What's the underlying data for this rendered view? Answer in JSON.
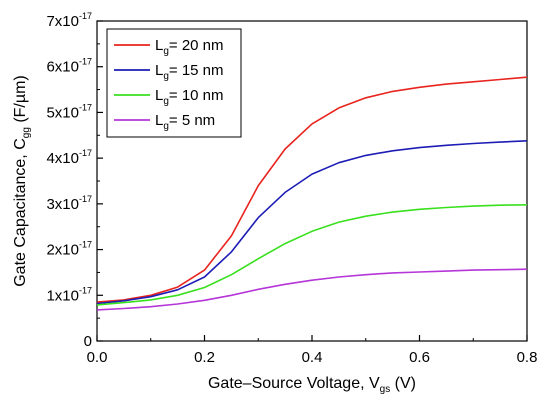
{
  "chart_data": {
    "type": "line",
    "xlabel": {
      "main": "Gate–Source Voltage, V",
      "sub": "gs",
      "unit": " (V)"
    },
    "ylabel": {
      "main": "Gate Capacitance, C",
      "sub": "gg",
      "unit": "  (F/µm)"
    },
    "xlim": [
      0,
      0.8
    ],
    "ylim": [
      0,
      7e-17
    ],
    "x_ticks": [
      {
        "value": 0.0,
        "label": "0.0"
      },
      {
        "value": 0.2,
        "label": "0.2"
      },
      {
        "value": 0.4,
        "label": "0.4"
      },
      {
        "value": 0.6,
        "label": "0.6"
      },
      {
        "value": 0.8,
        "label": "0.8"
      }
    ],
    "y_ticks": [
      {
        "value": 0,
        "mant": "0",
        "exp": ""
      },
      {
        "value": 1e-17,
        "mant": "1x10",
        "exp": "-17"
      },
      {
        "value": 2e-17,
        "mant": "2x10",
        "exp": "-17"
      },
      {
        "value": 3e-17,
        "mant": "3x10",
        "exp": "-17"
      },
      {
        "value": 4e-17,
        "mant": "4x10",
        "exp": "-17"
      },
      {
        "value": 5e-17,
        "mant": "5x10",
        "exp": "-17"
      },
      {
        "value": 6e-17,
        "mant": "6x10",
        "exp": "-17"
      },
      {
        "value": 7e-17,
        "mant": "7x10",
        "exp": "-17"
      }
    ],
    "grid": false,
    "legend_position": "top-left",
    "x": [
      0.0,
      0.05,
      0.1,
      0.15,
      0.2,
      0.25,
      0.3,
      0.35,
      0.4,
      0.45,
      0.5,
      0.55,
      0.6,
      0.65,
      0.7,
      0.75,
      0.8
    ],
    "series": [
      {
        "label_main": "L",
        "label_sub": "g",
        "label_rest": "= 20 nm",
        "color": "#e8241e",
        "values": [
          8.5e-18,
          9e-18,
          1e-17,
          1.18e-17,
          1.55e-17,
          2.3e-17,
          3.4e-17,
          4.2e-17,
          4.75e-17,
          5.1e-17,
          5.32e-17,
          5.46e-17,
          5.55e-17,
          5.62e-17,
          5.67e-17,
          5.72e-17,
          5.77e-17
        ]
      },
      {
        "label_main": "L",
        "label_sub": "g",
        "label_rest": "= 15 nm",
        "color": "#1d1db5",
        "values": [
          8.2e-18,
          8.8e-18,
          9.7e-18,
          1.12e-17,
          1.4e-17,
          1.95e-17,
          2.7e-17,
          3.25e-17,
          3.65e-17,
          3.9e-17,
          4.06e-17,
          4.16e-17,
          4.23e-17,
          4.28e-17,
          4.32e-17,
          4.35e-17,
          4.38e-17
        ]
      },
      {
        "label_main": "L",
        "label_sub": "g",
        "label_rest": "= 10 nm",
        "color": "#39e01e",
        "values": [
          7.9e-18,
          8.4e-18,
          9e-18,
          1e-17,
          1.17e-17,
          1.45e-17,
          1.8e-17,
          2.13e-17,
          2.4e-17,
          2.6e-17,
          2.73e-17,
          2.82e-17,
          2.88e-17,
          2.92e-17,
          2.95e-17,
          2.97e-17,
          2.98e-17
        ]
      },
      {
        "label_main": "L",
        "label_sub": "g",
        "label_rest": "= 5 nm",
        "color": "#b535d8",
        "values": [
          6.8e-18,
          7.1e-18,
          7.5e-18,
          8.1e-18,
          8.9e-18,
          1e-17,
          1.13e-17,
          1.24e-17,
          1.33e-17,
          1.4e-17,
          1.45e-17,
          1.49e-17,
          1.51e-17,
          1.53e-17,
          1.55e-17,
          1.56e-17,
          1.57e-17
        ]
      }
    ]
  }
}
